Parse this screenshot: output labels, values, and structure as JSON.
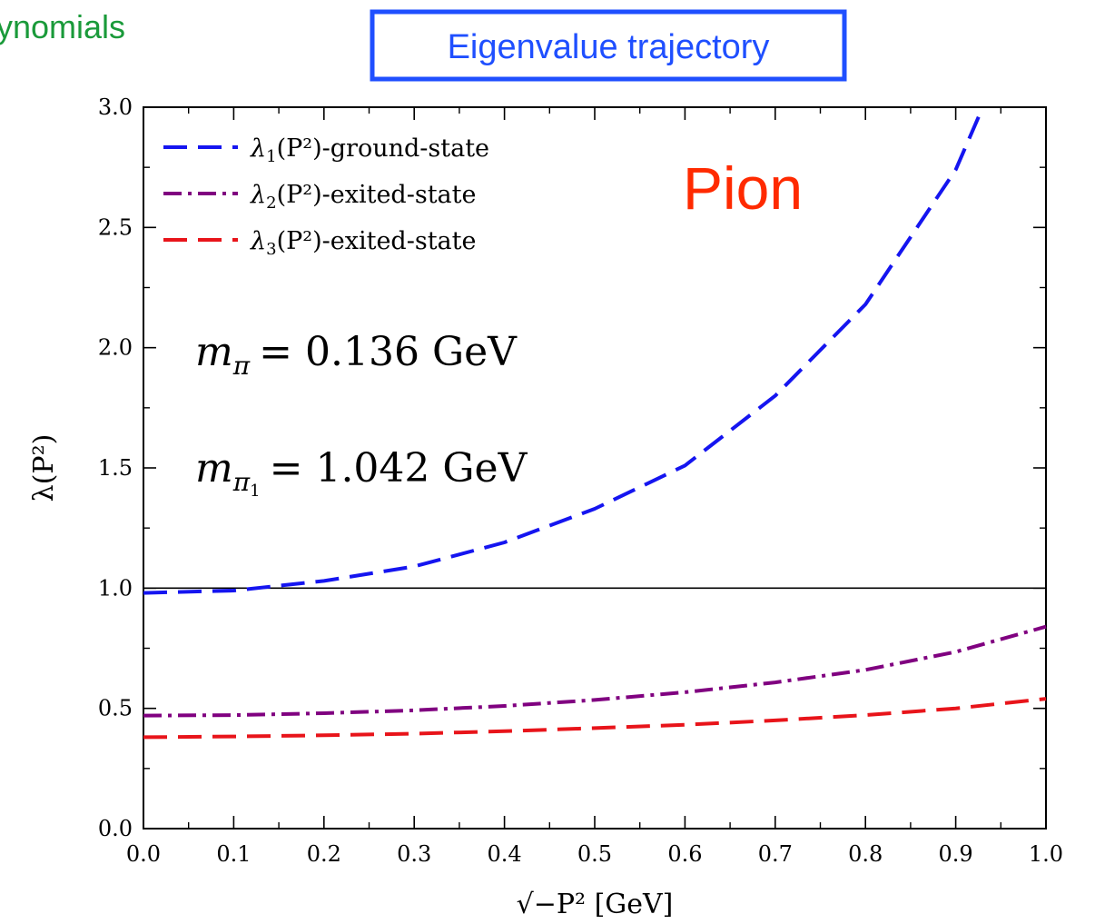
{
  "header": {
    "clipped_left_text": "ynomials",
    "clipped_left_color": "#1a9a3a",
    "boxed_title": "Eigenvalue trajectory",
    "boxed_title_color": "#1f4fff"
  },
  "annotations": {
    "particle": "Pion",
    "particle_color": "#ff2a00",
    "mass1_symbol": "m",
    "mass1_sub": "π",
    "mass1_value": "= 0.136 GeV",
    "mass2_symbol": "m",
    "mass2_sub": "π",
    "mass2_subsub": "1",
    "mass2_value": "= 1.042 GeV"
  },
  "chart_data": {
    "type": "line",
    "xlabel": "√−P² [GeV]",
    "ylabel": "λ(P²)",
    "xlim": [
      0.0,
      1.0
    ],
    "ylim": [
      0.0,
      3.0
    ],
    "x_ticks": [
      "0.0",
      "0.1",
      "0.2",
      "0.3",
      "0.4",
      "0.5",
      "0.6",
      "0.7",
      "0.8",
      "0.9",
      "1.0"
    ],
    "y_ticks": [
      "0.0",
      "0.5",
      "1.0",
      "1.5",
      "2.0",
      "2.5",
      "3.0"
    ],
    "x_tick_values": [
      0.0,
      0.1,
      0.2,
      0.3,
      0.4,
      0.5,
      0.6,
      0.7,
      0.8,
      0.9,
      1.0
    ],
    "y_tick_values": [
      0.0,
      0.5,
      1.0,
      1.5,
      2.0,
      2.5,
      3.0
    ],
    "reference_line": 1.0,
    "grid": false,
    "legend_position": "top-left",
    "series": [
      {
        "name": "λ1(P²)-ground-state",
        "legend_main": "λ",
        "legend_sub": "1",
        "legend_tail": "(P²)-ground-state",
        "color": "#1515f0",
        "style": "dashed",
        "x": [
          0.0,
          0.1,
          0.2,
          0.3,
          0.4,
          0.5,
          0.6,
          0.7,
          0.8,
          0.9,
          0.93
        ],
        "y": [
          0.98,
          0.99,
          1.03,
          1.09,
          1.19,
          1.33,
          1.51,
          1.8,
          2.18,
          2.74,
          3.0
        ]
      },
      {
        "name": "λ2(P²)-exited-state",
        "legend_main": "λ",
        "legend_sub": "2",
        "legend_tail": "(P²)-exited-state",
        "color": "#800080",
        "style": "dashdot",
        "x": [
          0.0,
          0.1,
          0.2,
          0.3,
          0.4,
          0.5,
          0.6,
          0.7,
          0.8,
          0.9,
          1.0
        ],
        "y": [
          0.47,
          0.472,
          0.48,
          0.492,
          0.51,
          0.535,
          0.567,
          0.608,
          0.66,
          0.735,
          0.84
        ]
      },
      {
        "name": "λ3(P²)-exited-state",
        "legend_main": "λ",
        "legend_sub": "3",
        "legend_tail": "(P²)-exited-state",
        "color": "#e8141a",
        "style": "dashed",
        "x": [
          0.0,
          0.1,
          0.2,
          0.3,
          0.4,
          0.5,
          0.6,
          0.7,
          0.8,
          0.9,
          1.0
        ],
        "y": [
          0.38,
          0.383,
          0.388,
          0.395,
          0.405,
          0.418,
          0.432,
          0.45,
          0.472,
          0.5,
          0.54
        ]
      }
    ]
  }
}
